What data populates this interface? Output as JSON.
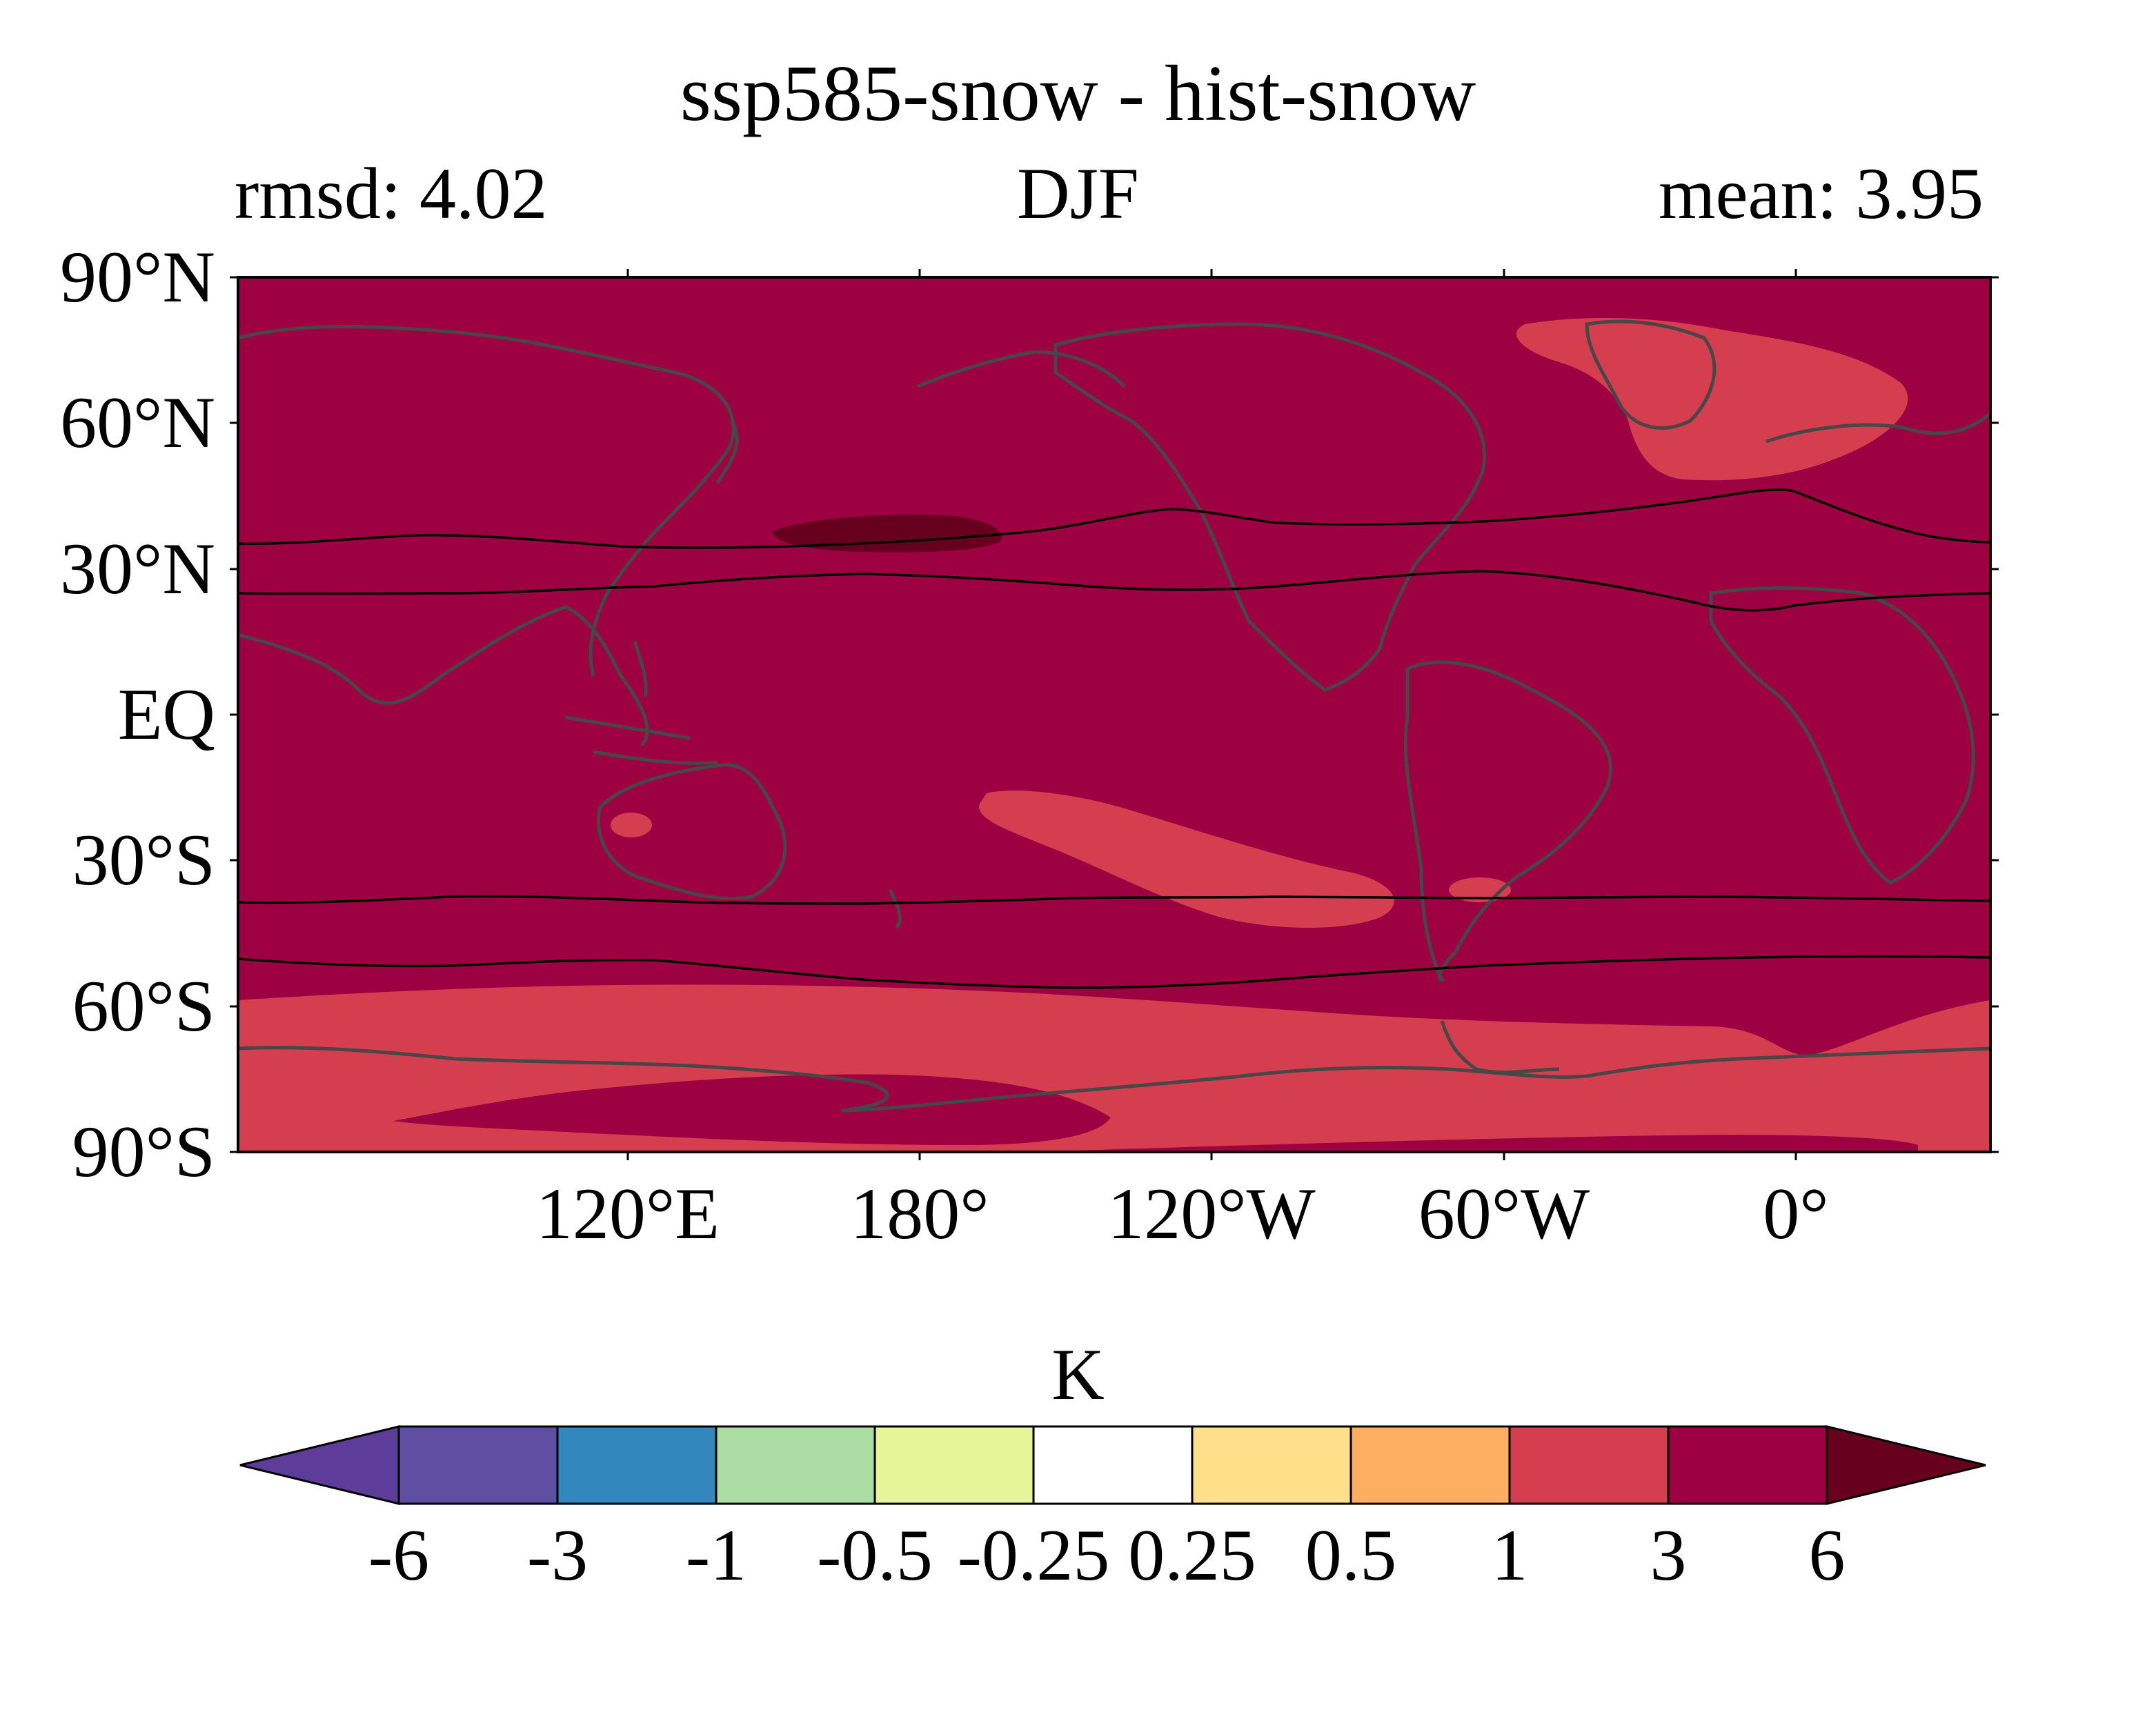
{
  "header": {
    "title": "ssp585-snow - hist-snow",
    "rmsd_label": "rmsd: 4.02",
    "season": "DJF",
    "mean_label": "mean: 3.95"
  },
  "map": {
    "lat_ticks": [
      "90°N",
      "60°N",
      "30°N",
      "EQ",
      "30°S",
      "60°S",
      "90°S"
    ],
    "lon_ticks": [
      "120°E",
      "180°",
      "120°W",
      "60°W",
      "0°"
    ],
    "background_color": "#9e0142",
    "region_color_1_to_3": "#d53e4f",
    "region_color_over_6": "#67001f",
    "coastline_color": "#474747",
    "contour_line_color": "#000000"
  },
  "colorbar": {
    "unit": "K",
    "tick_labels": [
      "-6",
      "-3",
      "-1",
      "-0.5",
      "-0.25",
      "0.25",
      "0.5",
      "1",
      "3",
      "6"
    ],
    "colors": [
      "#5e3c99",
      "#5e4fa2",
      "#3288bd",
      "#abdda4",
      "#e6f598",
      "#ffffff",
      "#fee08b",
      "#fdae61",
      "#d53e4f",
      "#9e0142",
      "#67001f"
    ],
    "extend": "both"
  }
}
